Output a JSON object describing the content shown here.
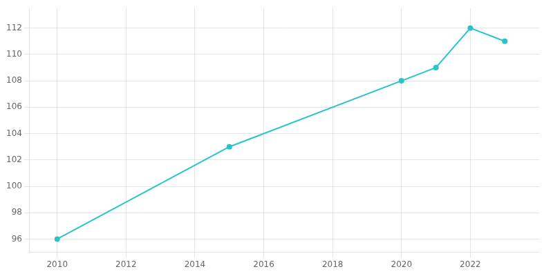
{
  "chart_data": {
    "type": "line",
    "x": [
      2010,
      2015,
      2020,
      2021,
      2022,
      2023
    ],
    "values": [
      96,
      103,
      108,
      109,
      112,
      111
    ],
    "color": "#26C6C6",
    "marker": "circle",
    "xlim": [
      2009.2,
      2024.0
    ],
    "xticks": [
      2010,
      2012,
      2014,
      2016,
      2018,
      2020,
      2022
    ],
    "ylim": [
      95,
      113.5
    ],
    "yticks": [
      96,
      98,
      100,
      102,
      104,
      106,
      108,
      110,
      112
    ],
    "grid": true
  }
}
